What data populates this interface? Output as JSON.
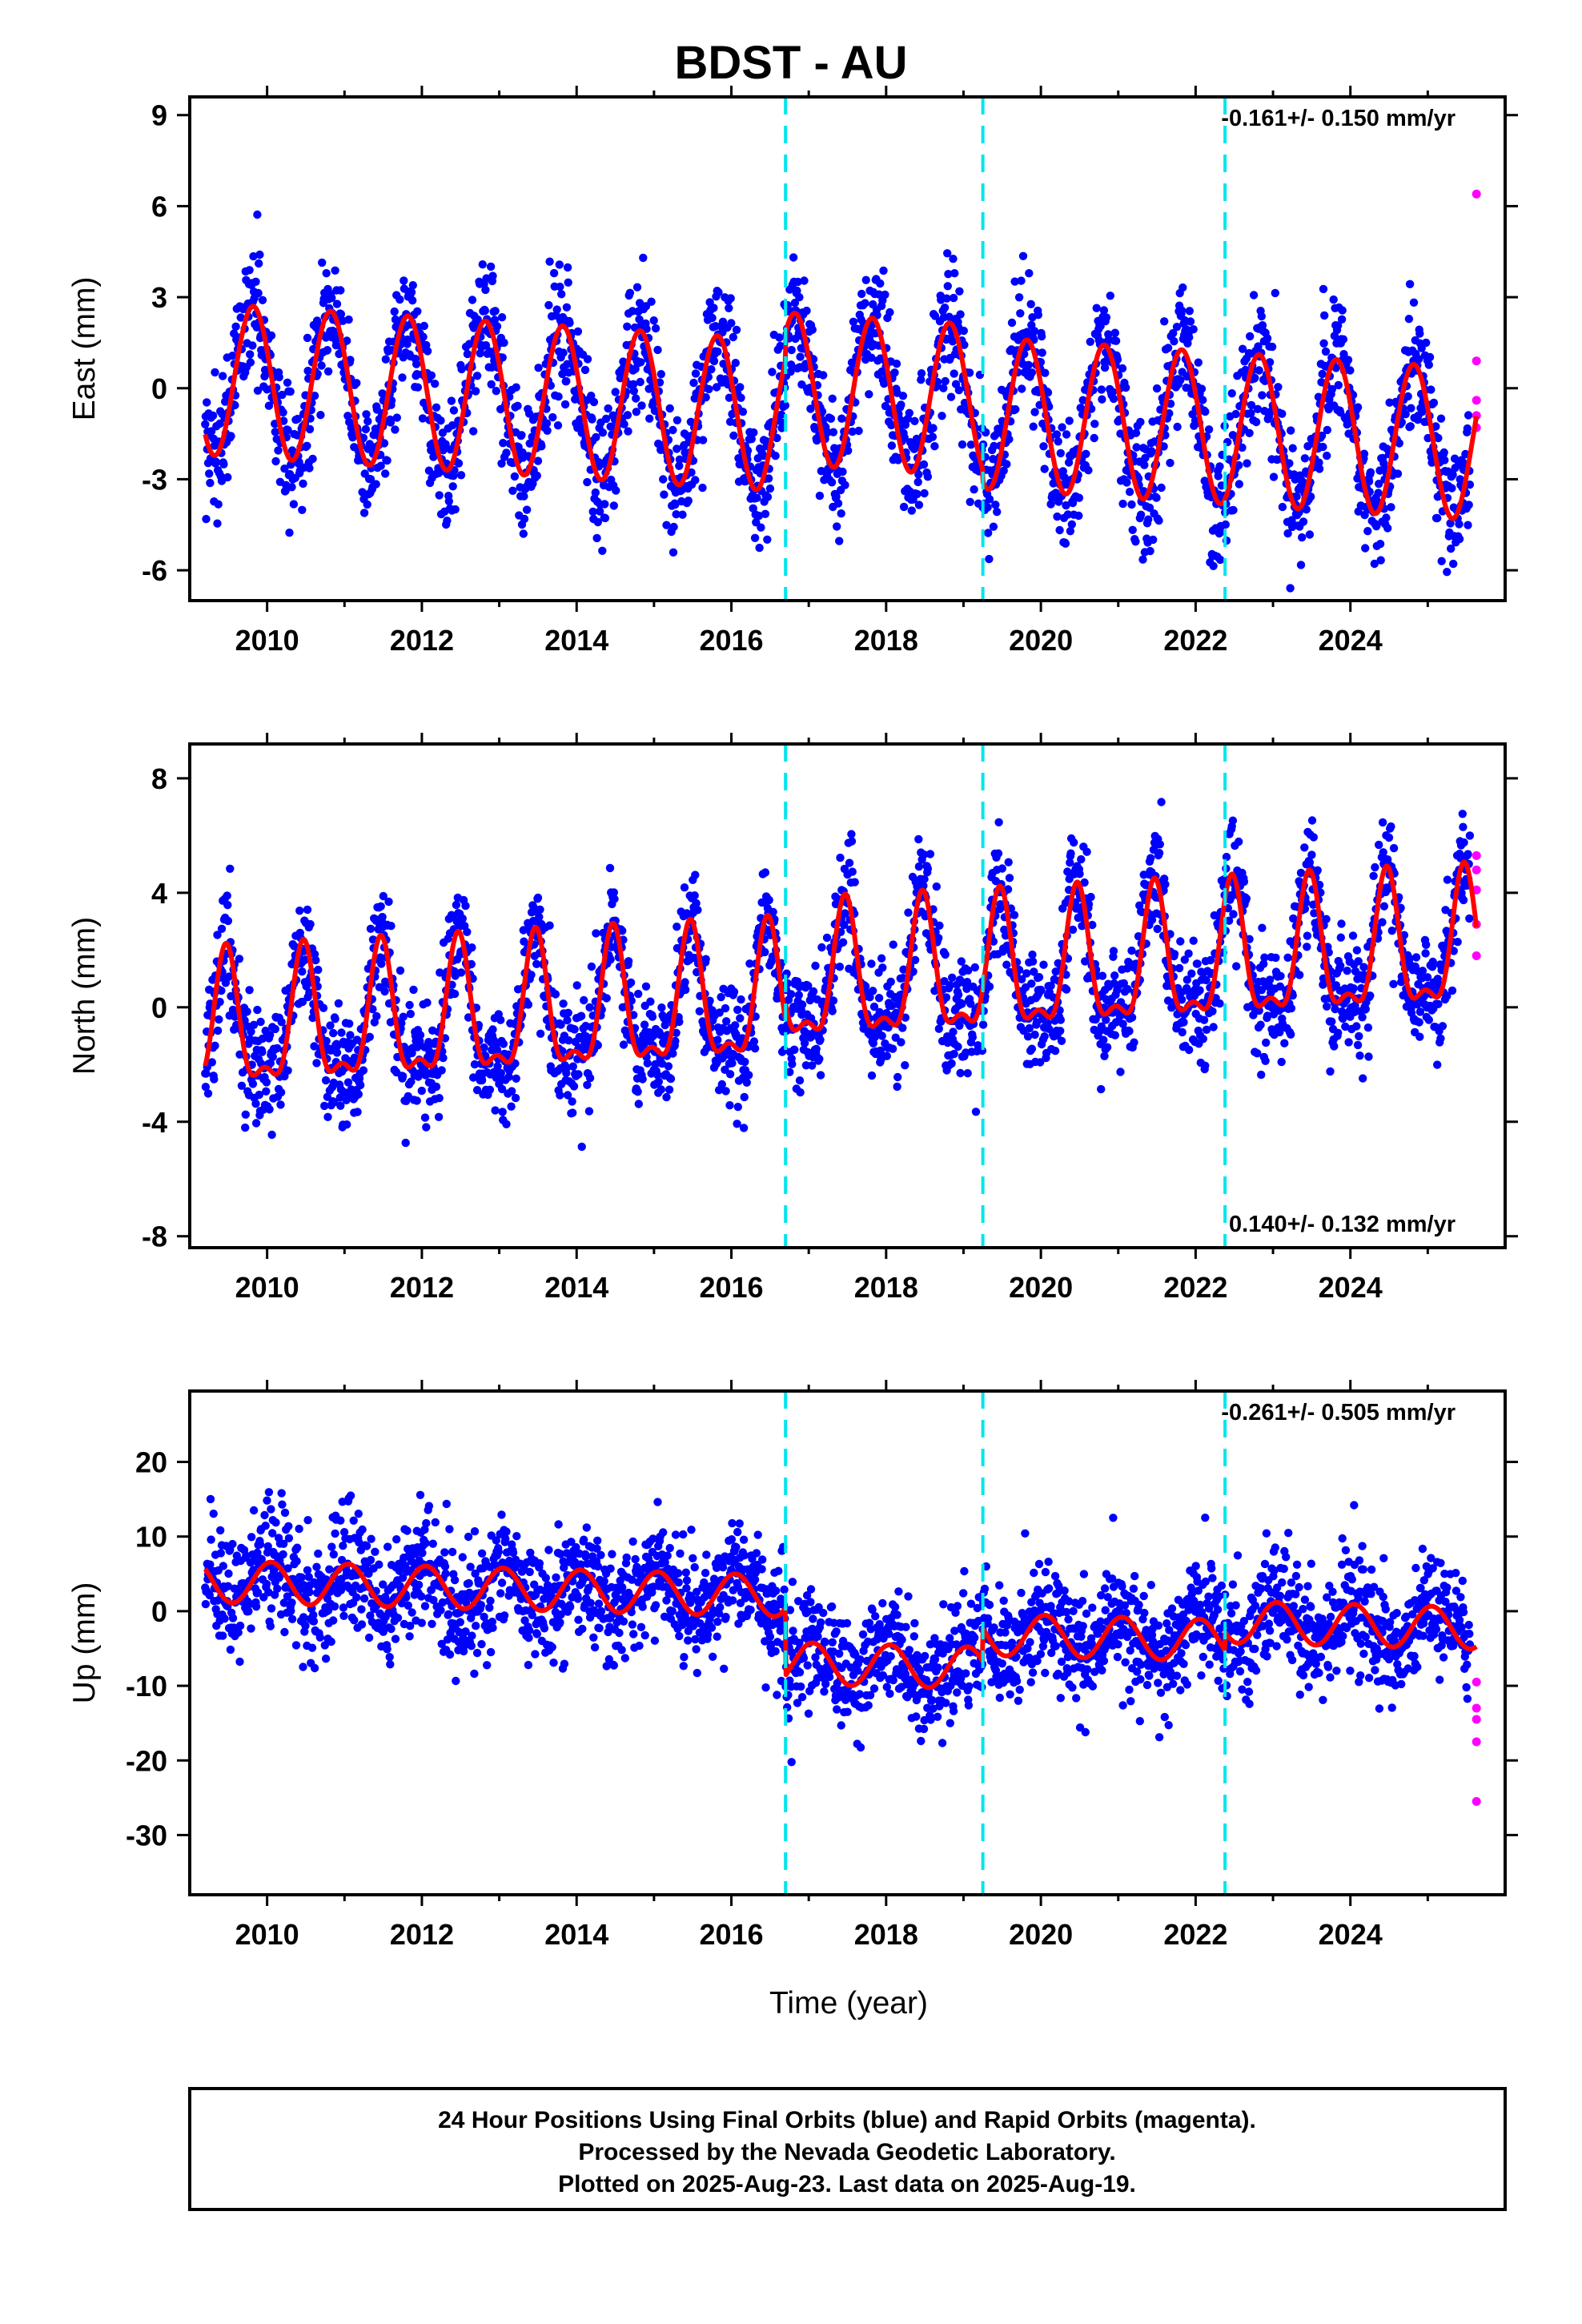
{
  "chart_data": {
    "type": "scatter",
    "title": "BDST - AU",
    "xlabel": "Time (year)",
    "xlim": [
      2009.0,
      2026.0
    ],
    "xticks": [
      2010,
      2012,
      2014,
      2016,
      2018,
      2020,
      2022,
      2024
    ],
    "xtick_labels": [
      "2010",
      "2012",
      "2014",
      "2016",
      "2018",
      "2020",
      "2022",
      "2024"
    ],
    "offsets": [
      2016.7,
      2019.25,
      2022.38
    ],
    "colors": {
      "final": "#0000ff",
      "rapid": "#ff00ff",
      "model": "#ff0000",
      "offset": "#00e5ee"
    },
    "data_start": 2009.2,
    "data_end": 2025.63,
    "rapid_start": 2025.55,
    "panels": [
      {
        "key": "east",
        "ylabel": "East (mm)",
        "ylim": [
          -7.0,
          9.6
        ],
        "yticks": [
          -6,
          -3,
          0,
          3,
          6,
          9
        ],
        "ytick_labels": [
          "-6",
          "-3",
          "0",
          "3",
          "6",
          "9"
        ],
        "rate": "-0.161+/- 0.150 mm/yr",
        "rate_position": "top-right",
        "trend_mm_per_yr": -0.161,
        "model_y0": 0.3,
        "offset_steps": [
          0.9,
          -0.4,
          0.0
        ],
        "seasonal_amplitude": 2.5,
        "seasonal_phase_frac": 0.82,
        "second_harmonic": 0.0,
        "noise_sd": 1.05,
        "rapid_values": [
          6.4,
          0.9,
          -0.4,
          -0.9,
          -1.3
        ]
      },
      {
        "key": "north",
        "ylabel": "North (mm)",
        "ylim": [
          -8.4,
          9.2
        ],
        "yticks": [
          -8,
          -4,
          0,
          4,
          8
        ],
        "ytick_labels": [
          "-8",
          "-4",
          "0",
          "4",
          "8"
        ],
        "rate": "0.140+/- 0.132 mm/yr",
        "rate_position": "bottom-right",
        "trend_mm_per_yr": 0.14,
        "model_y0": -0.9,
        "offset_steps": [
          0.6,
          0.0,
          0.0
        ],
        "seasonal_amplitude": 2.2,
        "seasonal_phase_frac": 0.47,
        "second_harmonic": 0.9,
        "noise_sd": 1.0,
        "rapid_values": [
          5.3,
          4.8,
          4.1,
          2.9,
          1.8
        ]
      },
      {
        "key": "up",
        "ylabel": "Up (mm)",
        "ylim": [
          -38.0,
          29.5
        ],
        "yticks": [
          -30,
          -20,
          -10,
          0,
          10,
          20
        ],
        "ytick_labels": [
          "-30",
          "-20",
          "-10",
          "0",
          "10",
          "20"
        ],
        "rate": "-0.261+/- 0.505 mm/yr",
        "rate_position": "top-right",
        "trend_mm_per_yr": -0.261,
        "model_y0": 4.0,
        "offset_steps": [
          -9.0,
          4.5,
          2.5
        ],
        "seasonal_amplitude": 2.8,
        "seasonal_phase_frac": 0.05,
        "second_harmonic": 0.0,
        "noise_sd": 3.8,
        "rapid_values": [
          -9.5,
          -13.0,
          -14.5,
          -17.5,
          -25.5
        ]
      }
    ]
  },
  "footer": {
    "line1": "24 Hour Positions Using Final Orbits (blue) and Rapid Orbits (magenta).",
    "line2": "Processed by the Nevada Geodetic Laboratory.",
    "line3": "Plotted on 2025-Aug-23. Last data on 2025-Aug-19."
  }
}
